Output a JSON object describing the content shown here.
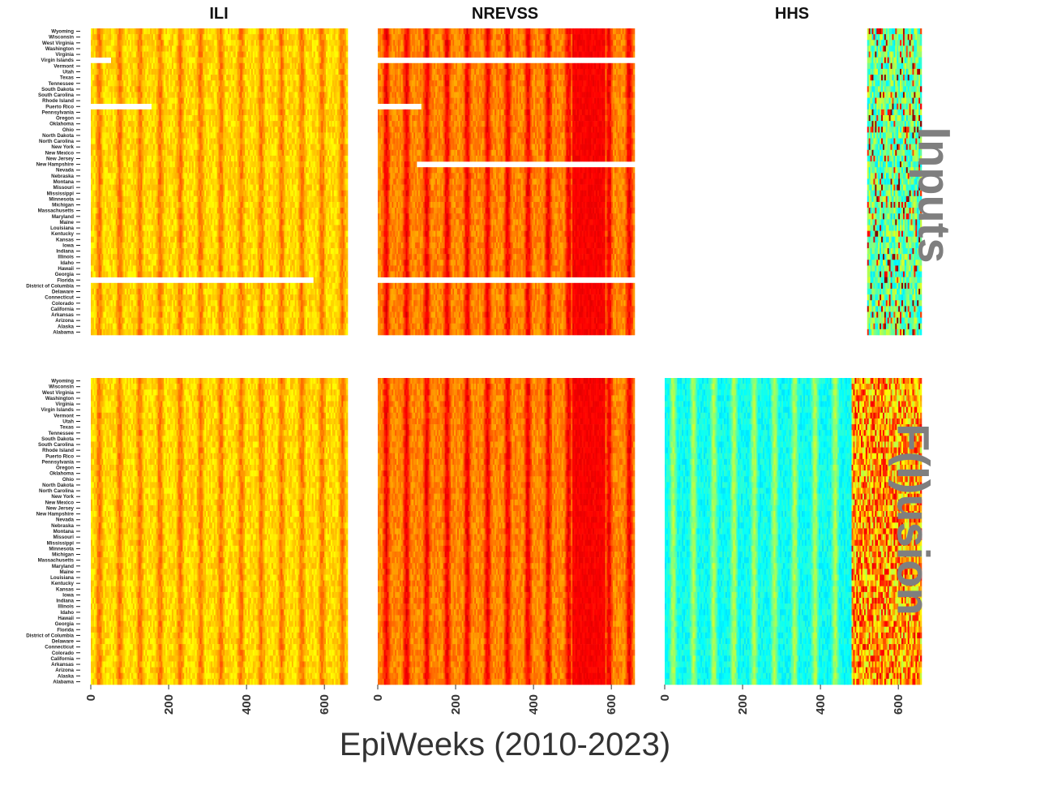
{
  "figure": {
    "column_titles": [
      "ILI",
      "NREVSS",
      "HHS"
    ],
    "row_titles": [
      "Inputs",
      "F(I)usion"
    ],
    "xlabel": "EpiWeeks (2010-2023)"
  },
  "chart_data": {
    "type": "heatmap",
    "xlabel": "EpiWeeks (2010-2023)",
    "x_ticks": [
      0,
      200,
      400,
      600
    ],
    "xlim": [
      0,
      660
    ],
    "y_categories": [
      "Wyoming",
      "Wisconsin",
      "West Virginia",
      "Washington",
      "Virginia",
      "Virgin Islands",
      "Vermont",
      "Utah",
      "Texas",
      "Tennessee",
      "South Dakota",
      "South Carolina",
      "Rhode Island",
      "Puerto Rico",
      "Pennsylvania",
      "Oregon",
      "Oklahoma",
      "Ohio",
      "North Dakota",
      "North Carolina",
      "New York",
      "New Mexico",
      "New Jersey",
      "New Hampshire",
      "Nevada",
      "Nebraska",
      "Montana",
      "Missouri",
      "Mississippi",
      "Minnesota",
      "Michigan",
      "Massachusetts",
      "Maryland",
      "Maine",
      "Louisiana",
      "Kentucky",
      "Kansas",
      "Iowa",
      "Indiana",
      "Illinois",
      "Idaho",
      "Hawaii",
      "Georgia",
      "Florida",
      "District of Columbia",
      "Delaware",
      "Connecticut",
      "Colorado",
      "California",
      "Arkansas",
      "Arizona",
      "Alaska",
      "Alabama"
    ],
    "panels": [
      {
        "row": "Inputs",
        "column": "ILI",
        "colormap": "jet",
        "dominant": "orange",
        "missing": [
          {
            "state": "Virgin Islands",
            "to": 50
          },
          {
            "state": "Puerto Rico",
            "to": 155
          },
          {
            "state": "Florida",
            "to": 570
          }
        ]
      },
      {
        "row": "Inputs",
        "column": "NREVSS",
        "colormap": "jet",
        "dominant": "red",
        "missing": [
          {
            "state": "Virgin Islands",
            "from": 0,
            "to": 660
          },
          {
            "state": "Puerto Rico",
            "from": 0,
            "to": 110
          },
          {
            "state": "Florida",
            "from": 0,
            "to": 660
          },
          {
            "state": "New Hampshire",
            "from": 100,
            "to": 660
          }
        ]
      },
      {
        "row": "Inputs",
        "column": "HHS",
        "colormap": "jet",
        "dominant": "cyan",
        "data_starts_at": 520
      },
      {
        "row": "F(I)usion",
        "column": "ILI",
        "colormap": "jet",
        "dominant": "orange"
      },
      {
        "row": "F(I)usion",
        "column": "NREVSS",
        "colormap": "jet",
        "dominant": "red"
      },
      {
        "row": "F(I)usion",
        "column": "HHS",
        "colormap": "jet",
        "dominant": "green"
      }
    ]
  }
}
